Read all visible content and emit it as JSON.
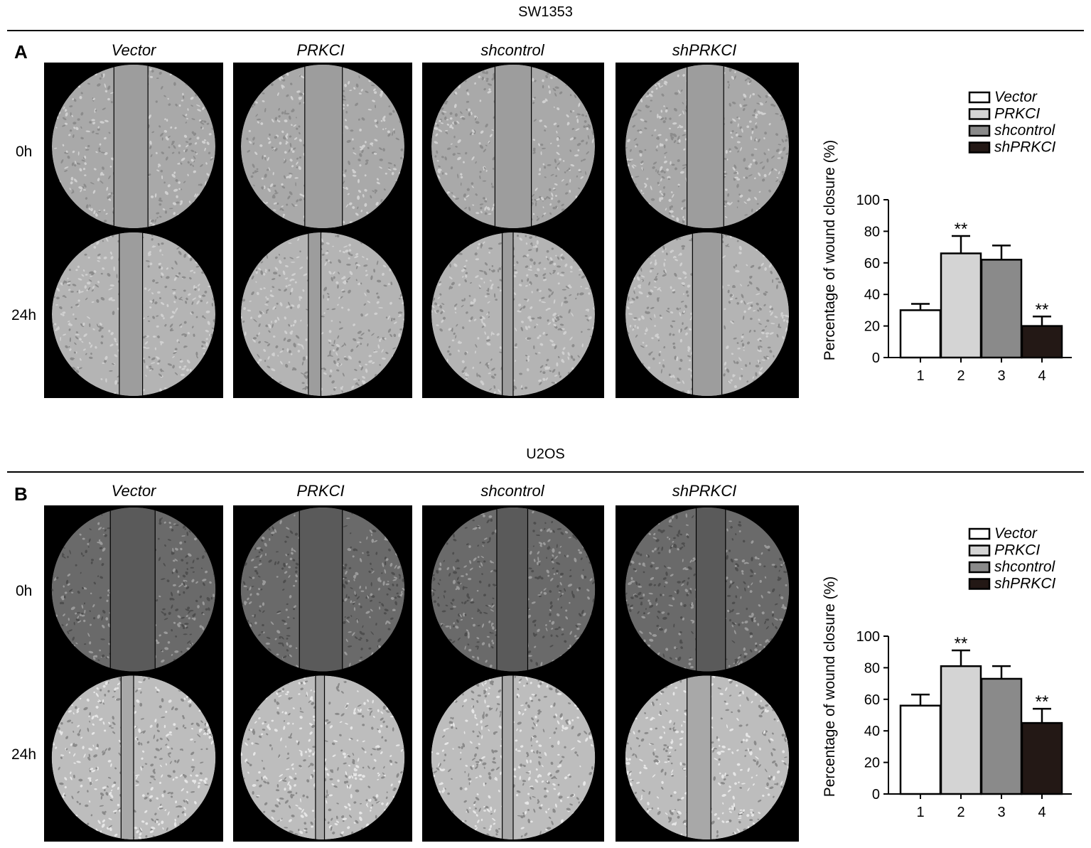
{
  "panels": [
    {
      "letter": "A",
      "cell_line": "SW1353",
      "conditions": [
        "Vector",
        "PRKCI",
        "shcontrol",
        "shPRKCI"
      ],
      "timepoints": [
        "0h",
        "24h"
      ],
      "chart_data": {
        "type": "bar",
        "categories": [
          "1",
          "2",
          "3",
          "4"
        ],
        "values": [
          30,
          66,
          62,
          20
        ],
        "errors": [
          4,
          11,
          9,
          6
        ],
        "significance": [
          "",
          "**",
          "",
          "**"
        ],
        "ylabel": "Percentage of wound closure (%)",
        "ylim": [
          0,
          100
        ],
        "yticks": [
          0,
          20,
          40,
          60,
          80,
          100
        ],
        "legend": [
          "Vector",
          "PRKCI",
          "shcontrol",
          "shPRKCI"
        ],
        "legend_position": "top-right",
        "colors": [
          "#ffffff",
          "#d4d4d4",
          "#8a8a8a",
          "#231815"
        ]
      }
    },
    {
      "letter": "B",
      "cell_line": "U2OS",
      "conditions": [
        "Vector",
        "PRKCI",
        "shcontrol",
        "shPRKCI"
      ],
      "timepoints": [
        "0h",
        "24h"
      ],
      "chart_data": {
        "type": "bar",
        "categories": [
          "1",
          "2",
          "3",
          "4"
        ],
        "values": [
          56,
          81,
          73,
          45
        ],
        "errors": [
          7,
          10,
          8,
          9
        ],
        "significance": [
          "",
          "**",
          "",
          "**"
        ],
        "ylabel": "Percentage of wound closure (%)",
        "ylim": [
          0,
          100
        ],
        "yticks": [
          0,
          20,
          40,
          60,
          80,
          100
        ],
        "legend": [
          "Vector",
          "PRKCI",
          "shcontrol",
          "shPRKCI"
        ],
        "legend_position": "top-right",
        "colors": [
          "#ffffff",
          "#d4d4d4",
          "#8a8a8a",
          "#231815"
        ]
      }
    }
  ]
}
